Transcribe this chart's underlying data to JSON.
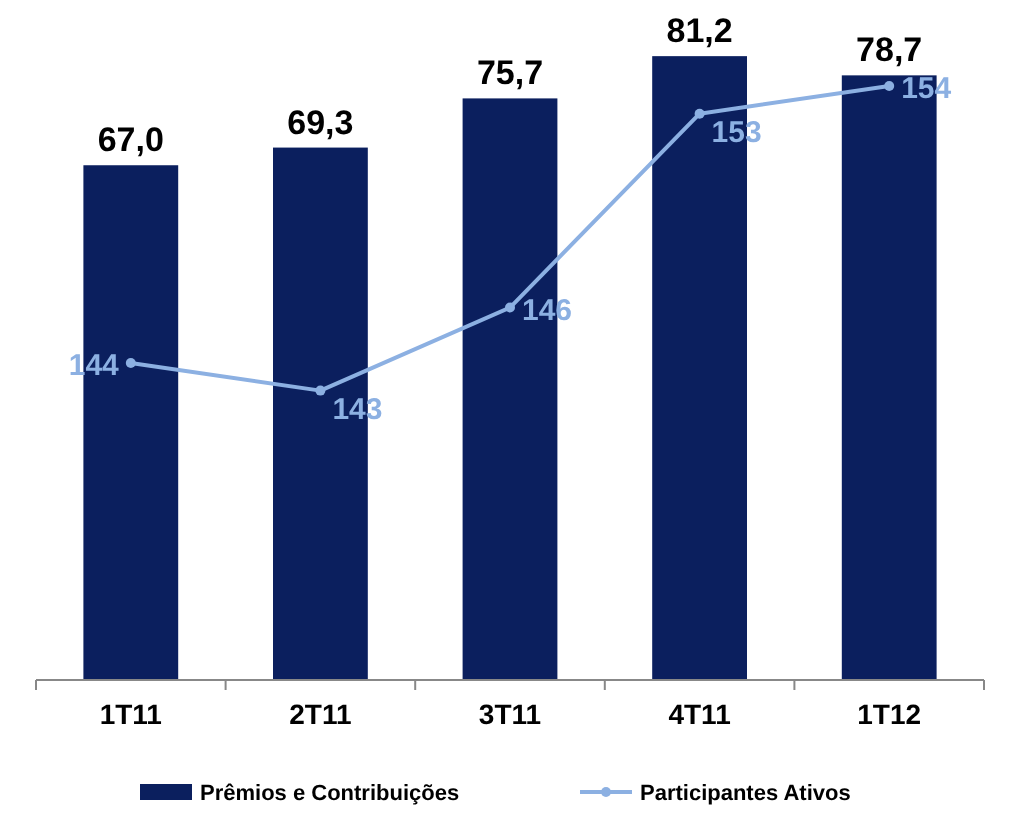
{
  "chart_data": {
    "type": "bar",
    "categories": [
      "1T11",
      "2T11",
      "3T11",
      "4T11",
      "1T12"
    ],
    "series": [
      {
        "name": "Prêmios e Contribuições",
        "color": "#0b1f5e",
        "values": [
          67.0,
          69.3,
          75.7,
          81.2,
          78.7
        ],
        "value_labels": [
          "67,0",
          "69,3",
          "75,7",
          "81,2",
          "78,7"
        ]
      },
      {
        "name": "Participantes Ativos",
        "type": "line",
        "axis": "y2",
        "color": "#8cb0e2",
        "values": [
          144,
          143,
          146,
          153,
          154
        ],
        "value_labels": [
          "144",
          "143",
          "146",
          "153",
          "154"
        ]
      }
    ],
    "marker": "circle",
    "legend": "bottom"
  }
}
